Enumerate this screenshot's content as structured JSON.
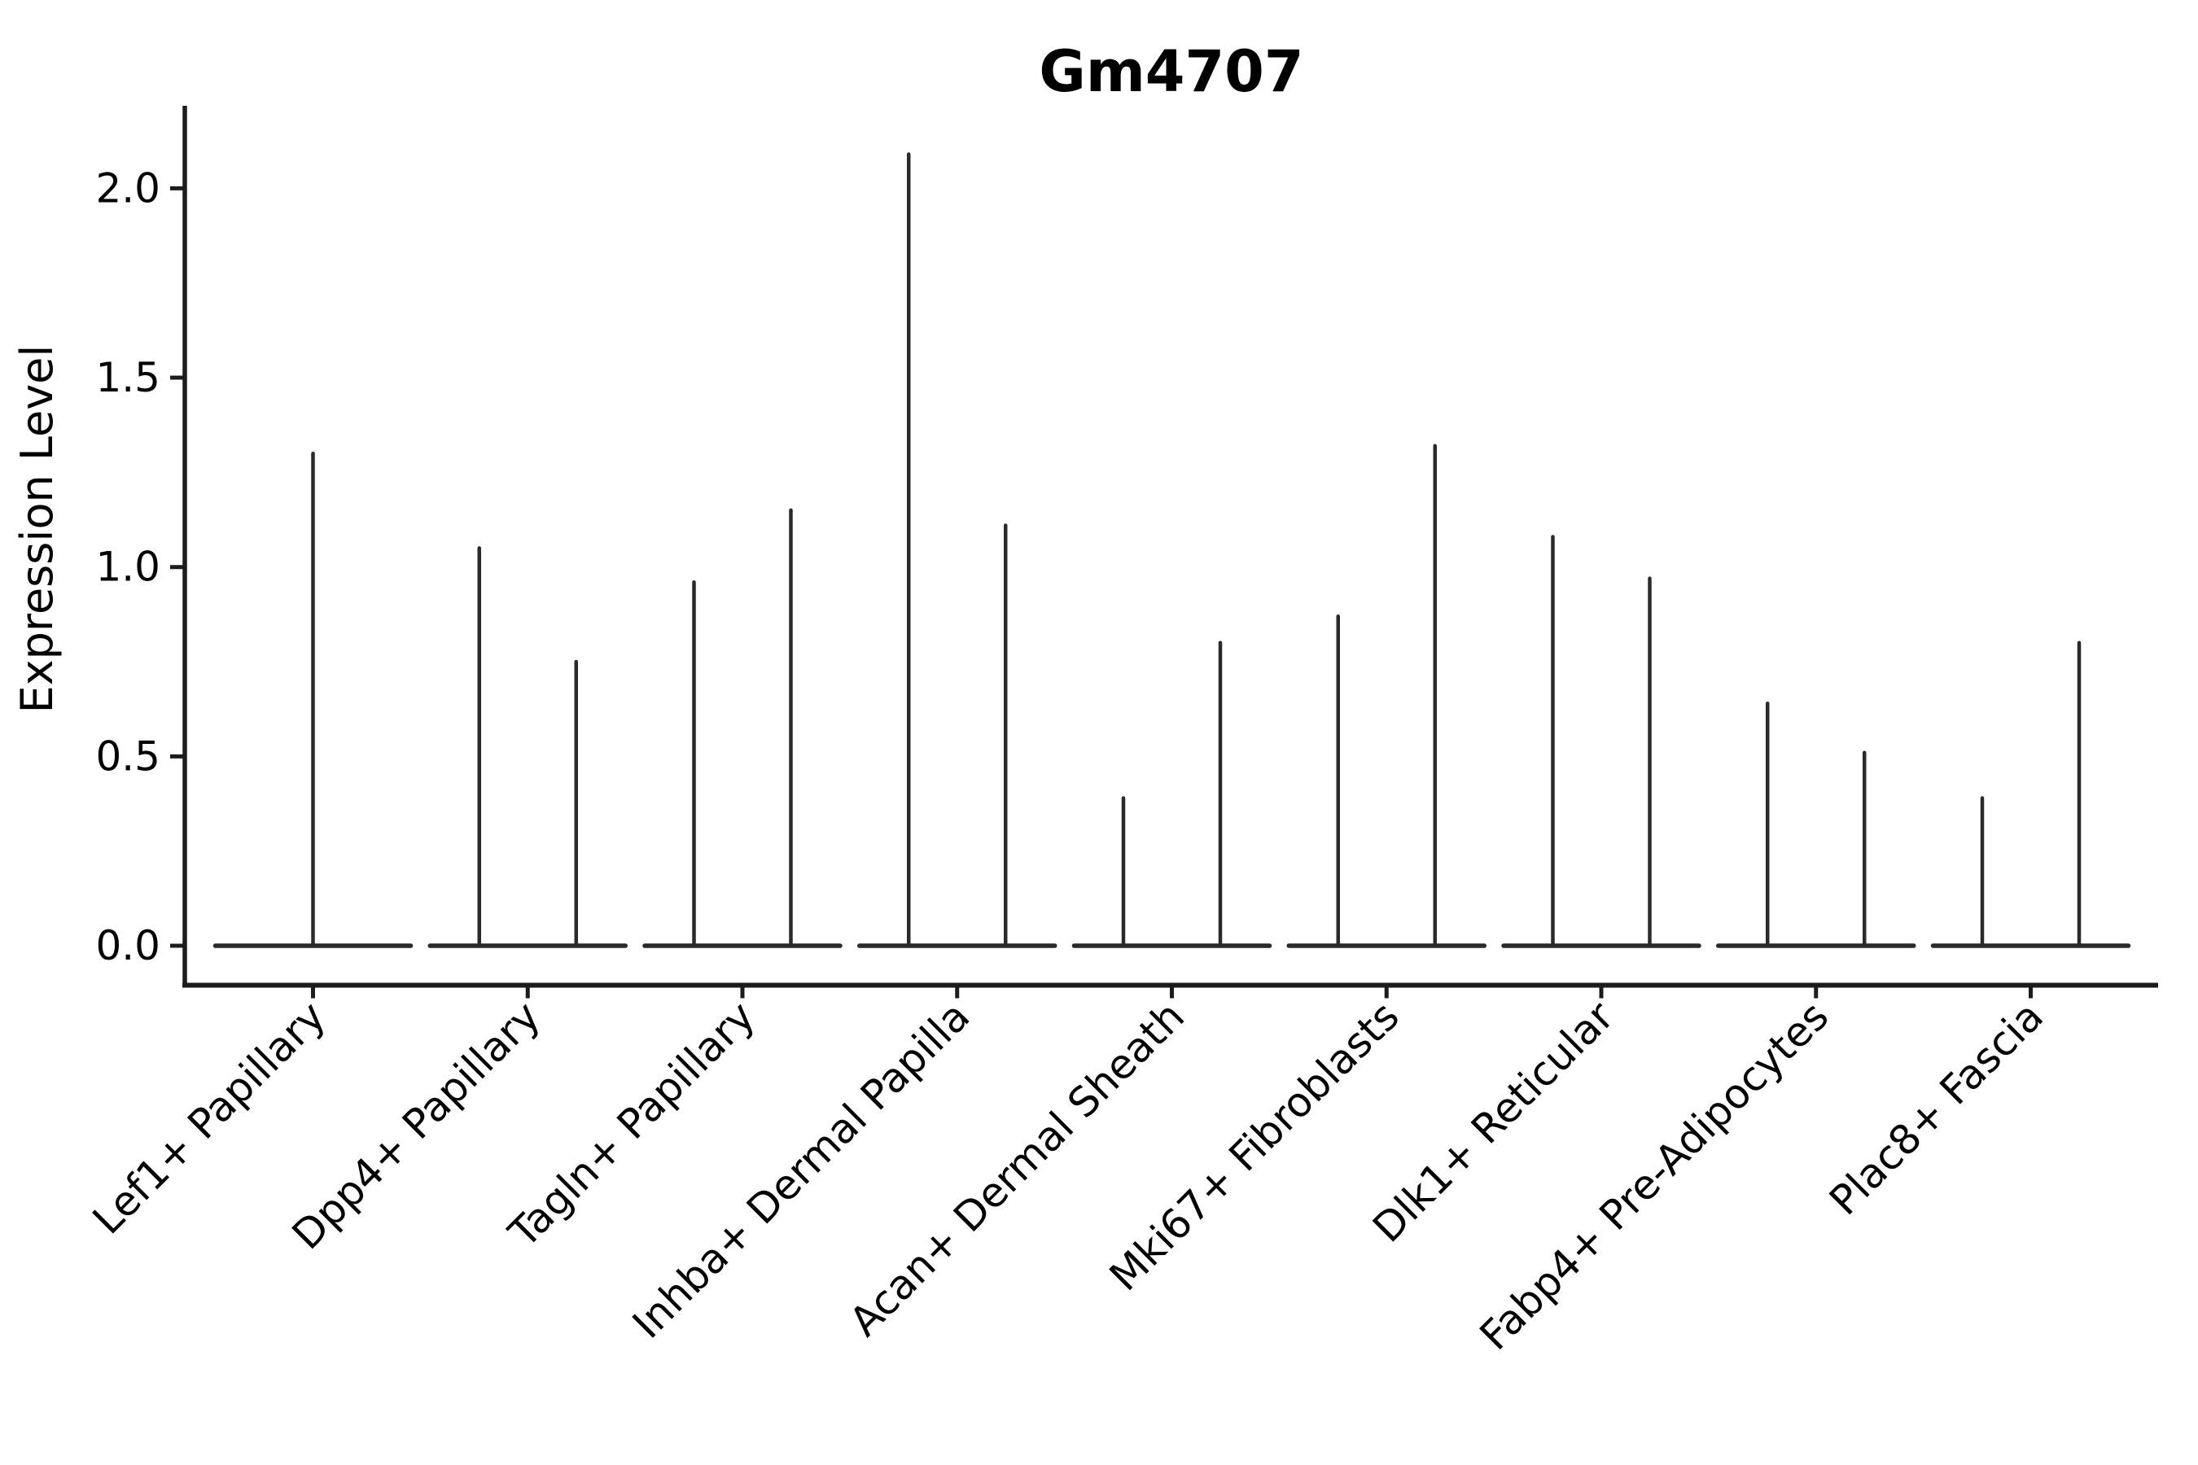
{
  "figure": {
    "background": "#ffffff"
  },
  "chart_data": {
    "type": "violin",
    "title": "Gm4707",
    "ylabel": "Expression Level",
    "xlabel": "",
    "yticks": [
      "0.0",
      "0.5",
      "1.0",
      "1.5",
      "2.0"
    ],
    "ylim": [
      -0.06,
      2.22
    ],
    "grid": false,
    "legend": "none",
    "violin_style": "collapsed-baseline-with-max-spike",
    "categories": [
      {
        "label": "Lef1+ Papillary",
        "spike_values": [
          1.3
        ]
      },
      {
        "label": "Dpp4+ Papillary",
        "spike_values": [
          1.05,
          0.75
        ]
      },
      {
        "label": "Tagln+ Papillary",
        "spike_values": [
          0.96,
          1.15
        ]
      },
      {
        "label": "Inhba+ Dermal Papilla",
        "spike_values": [
          2.09,
          1.11
        ]
      },
      {
        "label": "Acan+ Dermal Sheath",
        "spike_values": [
          0.39,
          0.8
        ]
      },
      {
        "label": "Mki67+ Fibroblasts",
        "spike_values": [
          0.87,
          1.32
        ]
      },
      {
        "label": "Dlk1+ Reticular",
        "spike_values": [
          1.08,
          0.97
        ]
      },
      {
        "label": "Fabp4+ Pre-Adipocytes",
        "spike_values": [
          0.64,
          0.51
        ]
      },
      {
        "label": "Plac8+ Fascia",
        "spike_values": [
          0.39,
          0.8
        ]
      }
    ],
    "colors": {
      "line": "#2a2a2a",
      "spine": "#1c1c1c",
      "text": "#000000"
    }
  }
}
